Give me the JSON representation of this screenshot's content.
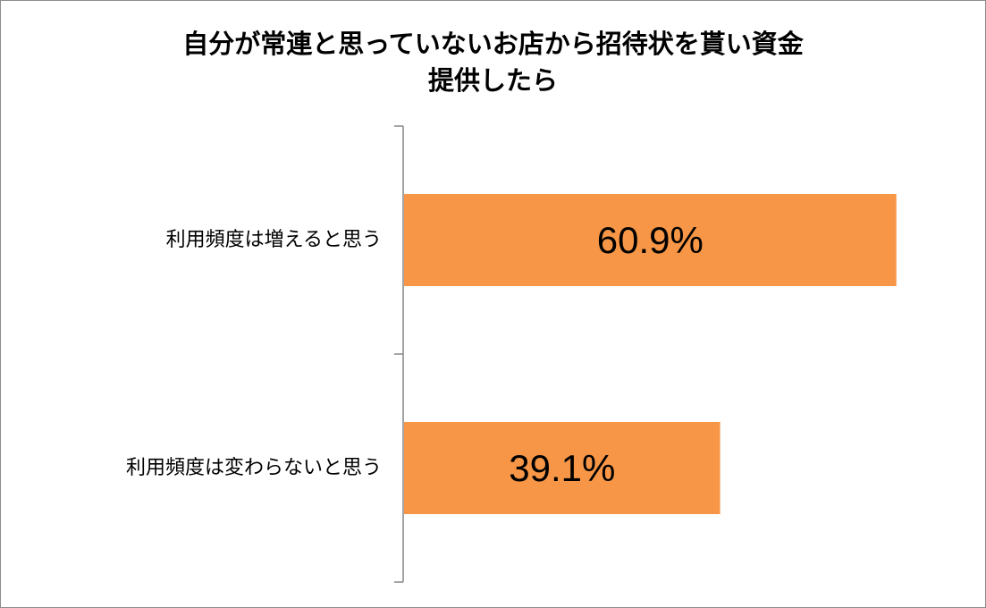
{
  "chart_data": {
    "type": "bar",
    "orientation": "horizontal",
    "title_lines": [
      "自分が常連と思っていないお店から招待状を貰い資金",
      "提供したら"
    ],
    "categories": [
      "利用頻度は増えると思う",
      "利用頻度は変わらないと思う"
    ],
    "values": [
      60.9,
      39.1
    ],
    "data_labels": [
      "60.9%",
      "39.1%"
    ],
    "unit": "%",
    "xlim": [
      0,
      70
    ],
    "grid": false,
    "legend": "none",
    "bar_color": "#F79646",
    "axis_color": "#868686"
  }
}
